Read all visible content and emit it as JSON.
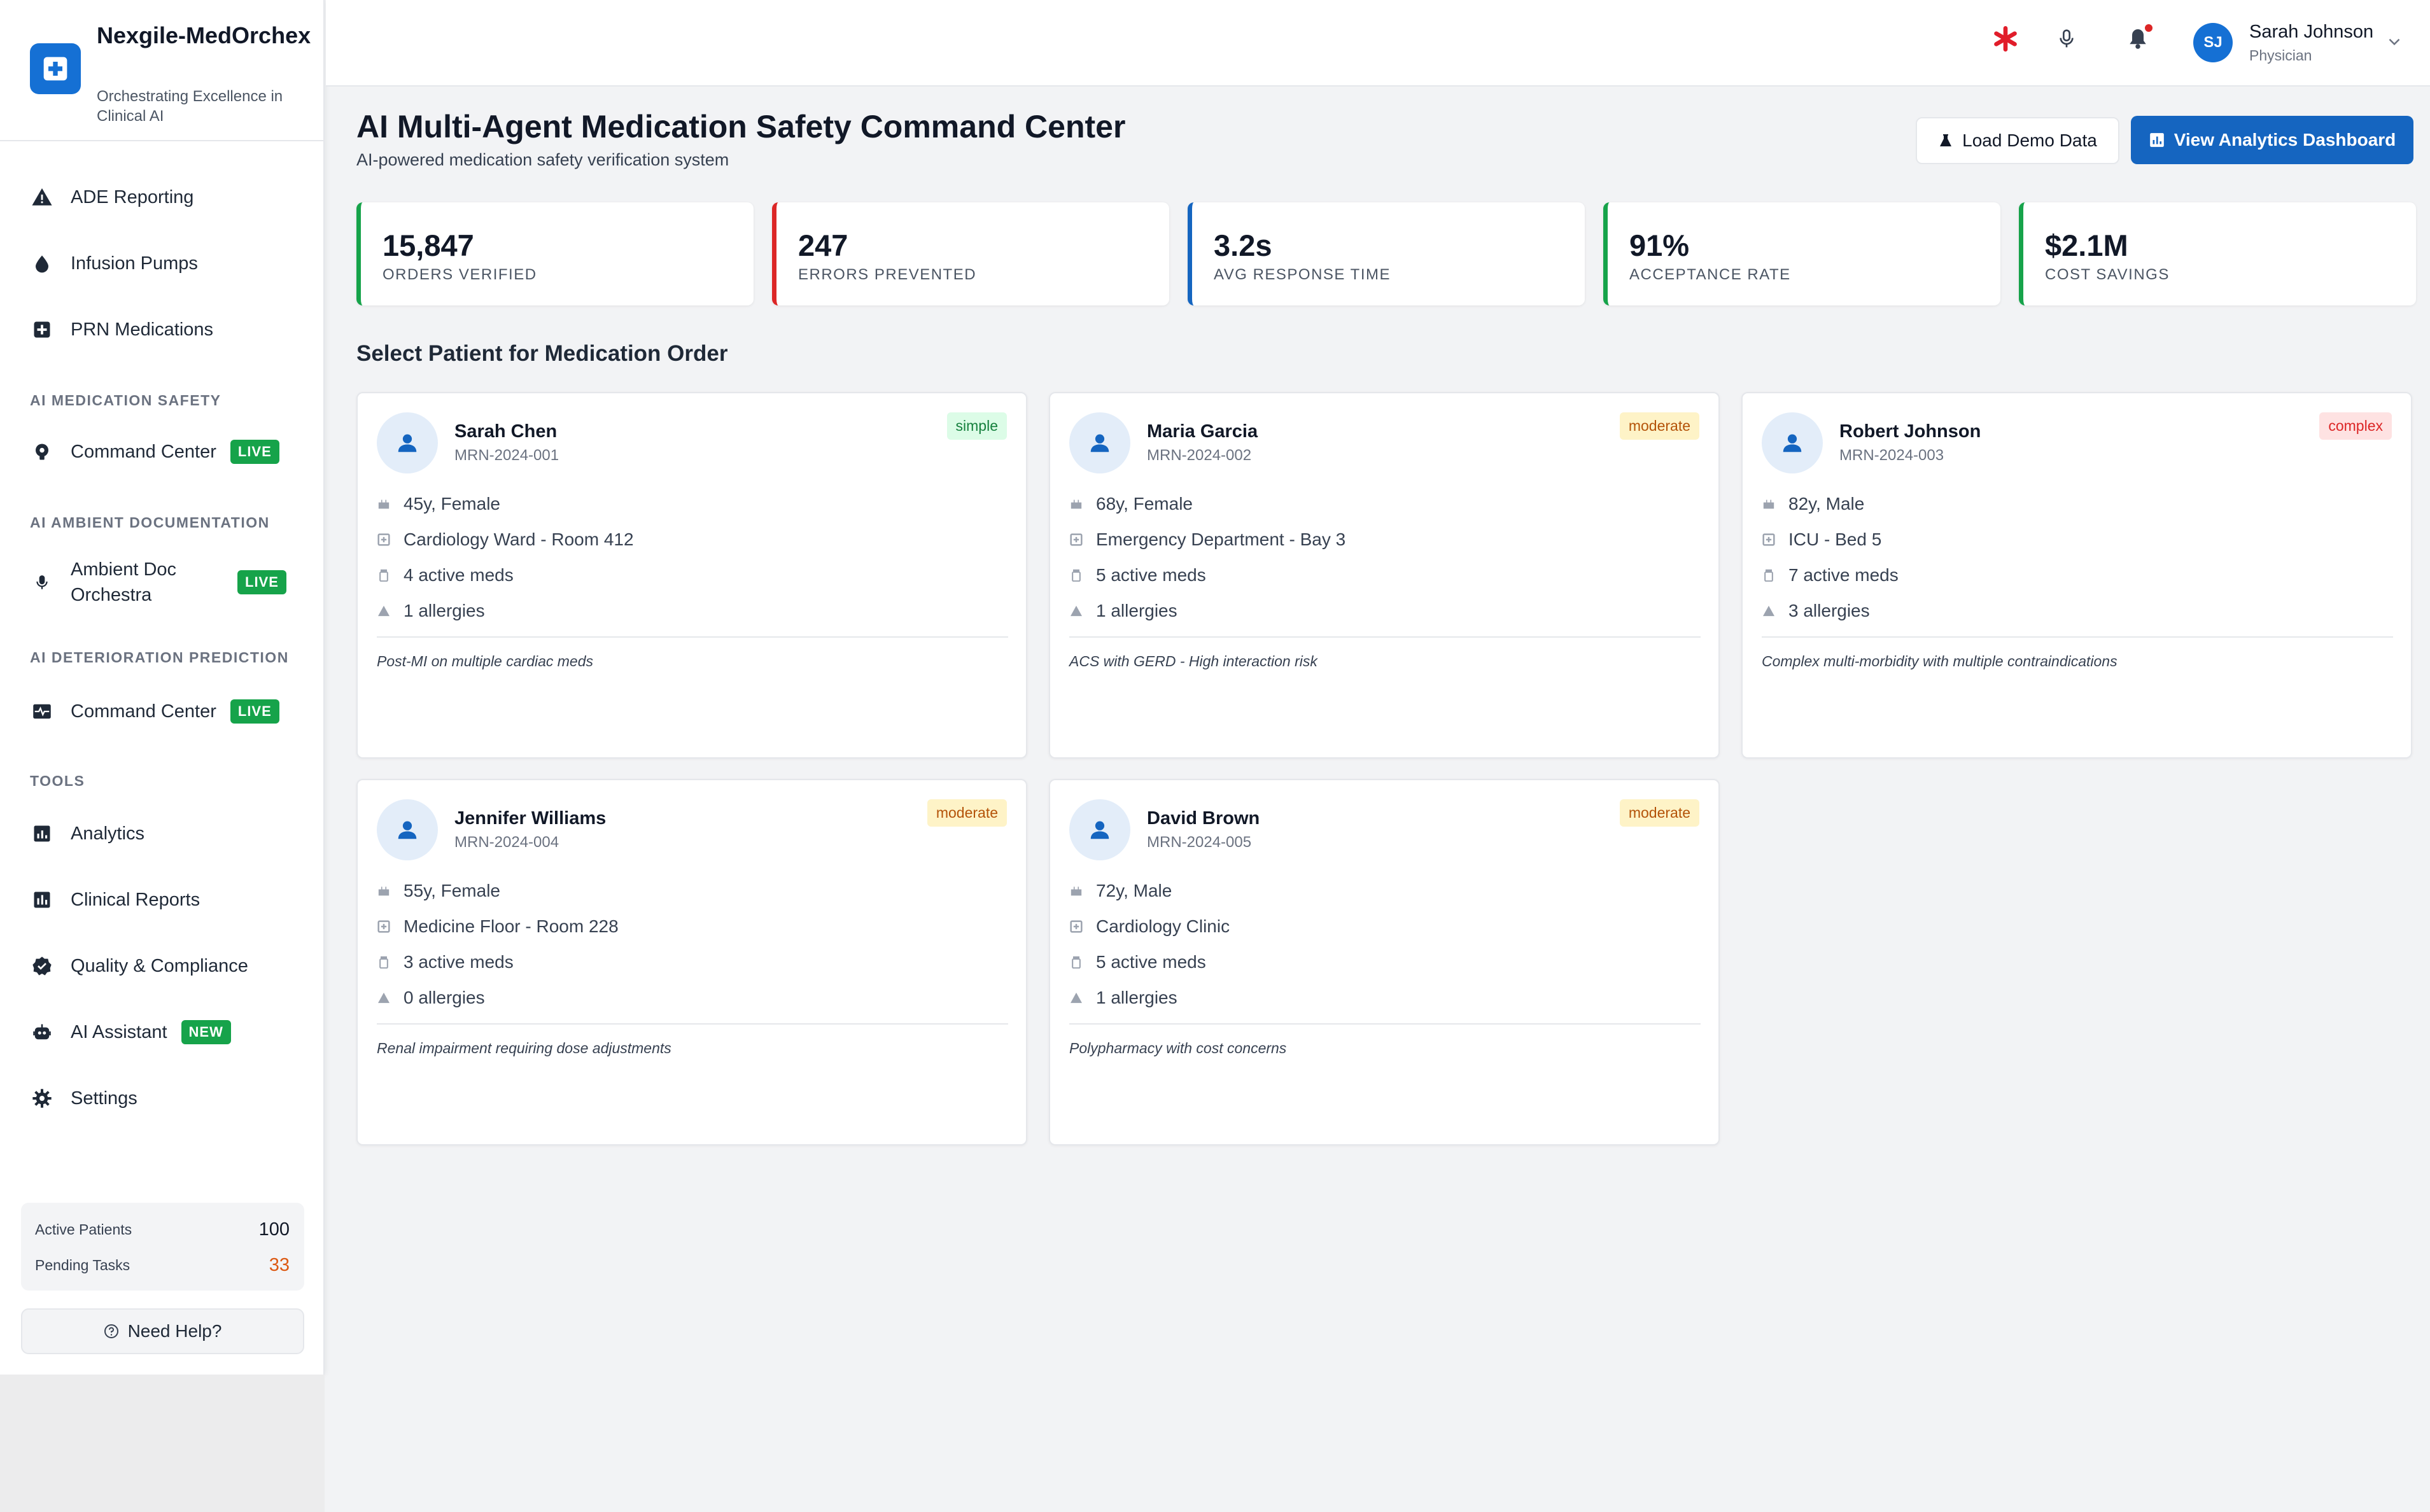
{
  "brand": {
    "name": "Nexgile-MedOrchex",
    "tagline": "Orchestrating Excellence in Clinical AI"
  },
  "sidebar": {
    "top_items": [
      {
        "label": "ADE Reporting",
        "icon": "warning-icon"
      },
      {
        "label": "Infusion Pumps",
        "icon": "drop-icon"
      },
      {
        "label": "PRN Medications",
        "icon": "medical-plus-icon"
      }
    ],
    "sections": [
      {
        "title": "AI MEDICATION SAFETY",
        "items": [
          {
            "label": "Command Center",
            "badge": "LIVE",
            "icon": "pill-icon"
          }
        ]
      },
      {
        "title": "AI AMBIENT DOCUMENTATION",
        "items": [
          {
            "label": "Ambient Doc Orchestra",
            "badge": "LIVE",
            "icon": "microphone-icon"
          }
        ]
      },
      {
        "title": "AI DETERIORATION PREDICTION",
        "items": [
          {
            "label": "Command Center",
            "badge": "LIVE",
            "icon": "monitor-heart-icon"
          }
        ]
      },
      {
        "title": "TOOLS",
        "items": [
          {
            "label": "Analytics",
            "icon": "analytics-icon"
          },
          {
            "label": "Clinical Reports",
            "icon": "bar-chart-icon"
          },
          {
            "label": "Quality & Compliance",
            "icon": "verified-icon"
          },
          {
            "label": "AI Assistant",
            "badge": "NEW",
            "icon": "robot-icon"
          },
          {
            "label": "Settings",
            "icon": "gear-icon"
          }
        ]
      }
    ],
    "stats": {
      "active_patients_label": "Active Patients",
      "active_patients_value": "100",
      "pending_tasks_label": "Pending Tasks",
      "pending_tasks_value": "33"
    },
    "help_label": "Need Help?"
  },
  "topbar": {
    "user_name": "Sarah Johnson",
    "user_role": "Physician",
    "user_initials": "SJ"
  },
  "header": {
    "title": "AI Multi-Agent Medication Safety Command Center",
    "subtitle": "AI-powered medication safety verification system",
    "load_demo_label": "Load Demo Data",
    "analytics_label": "View Analytics Dashboard"
  },
  "kpis": [
    {
      "value": "15,847",
      "label": "ORDERS VERIFIED",
      "color": "#16a34a"
    },
    {
      "value": "247",
      "label": "ERRORS PREVENTED",
      "color": "#dc2626"
    },
    {
      "value": "3.2s",
      "label": "AVG RESPONSE TIME",
      "color": "#1565c0"
    },
    {
      "value": "91%",
      "label": "ACCEPTANCE RATE",
      "color": "#16a34a"
    },
    {
      "value": "$2.1M",
      "label": "COST SAVINGS",
      "color": "#16a34a"
    }
  ],
  "patients_section_title": "Select Patient for Medication Order",
  "patients": [
    {
      "name": "Sarah Chen",
      "mrn": "MRN-2024-001",
      "complexity": "simple",
      "demographics": "45y, Female",
      "location": "Cardiology Ward - Room 412",
      "meds": "4 active meds",
      "allergies": "1 allergies",
      "note": "Post-MI on multiple cardiac meds"
    },
    {
      "name": "Maria Garcia",
      "mrn": "MRN-2024-002",
      "complexity": "moderate",
      "demographics": "68y, Female",
      "location": "Emergency Department - Bay 3",
      "meds": "5 active meds",
      "allergies": "1 allergies",
      "note": "ACS with GERD - High interaction risk"
    },
    {
      "name": "Robert Johnson",
      "mrn": "MRN-2024-003",
      "complexity": "complex",
      "demographics": "82y, Male",
      "location": "ICU - Bed 5",
      "meds": "7 active meds",
      "allergies": "3 allergies",
      "note": "Complex multi-morbidity with multiple contraindications"
    },
    {
      "name": "Jennifer Williams",
      "mrn": "MRN-2024-004",
      "complexity": "moderate",
      "demographics": "55y, Female",
      "location": "Medicine Floor - Room 228",
      "meds": "3 active meds",
      "allergies": "0 allergies",
      "note": "Renal impairment requiring dose adjustments"
    },
    {
      "name": "David Brown",
      "mrn": "MRN-2024-005",
      "complexity": "moderate",
      "demographics": "72y, Male",
      "location": "Cardiology Clinic",
      "meds": "5 active meds",
      "allergies": "1 allergies",
      "note": "Polypharmacy with cost concerns"
    }
  ]
}
